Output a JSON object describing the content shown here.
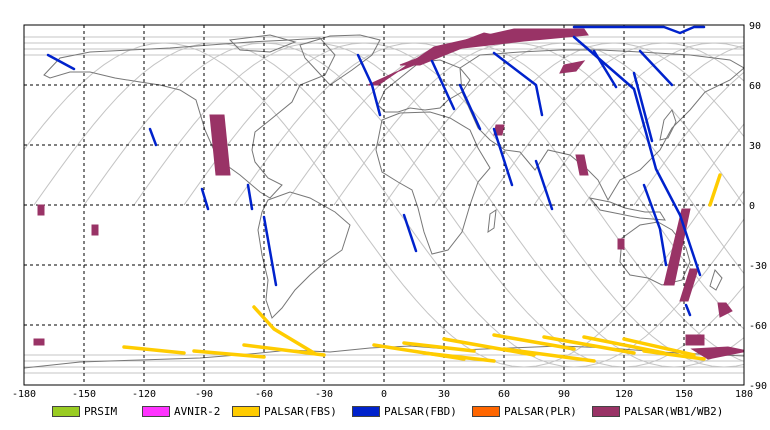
{
  "map": {
    "projection": "equirectangular",
    "lon_range": [
      -180,
      180
    ],
    "lat_range": [
      -90,
      90
    ],
    "x_ticks": [
      "-180",
      "-150",
      "-120",
      "-90",
      "-60",
      "-30",
      "0",
      "30",
      "60",
      "90",
      "120",
      "150",
      "180"
    ],
    "y_ticks": [
      "90",
      "60",
      "30",
      "0",
      "-30",
      "-60",
      "-90"
    ],
    "grid": true,
    "gridline_style": "dashed",
    "coastline_color": "#777777",
    "orbit_track_color": "#c4c4c4"
  },
  "legend": {
    "items": [
      {
        "label": "PRSIM",
        "color": "#99cc22"
      },
      {
        "label": "AVNIR-2",
        "color": "#ff33ff"
      },
      {
        "label": "PALSAR(FBS)",
        "color": "#ffcc00"
      },
      {
        "label": "PALSAR(FBD)",
        "color": "#0022cc"
      },
      {
        "label": "PALSAR(PLR)",
        "color": "#ff6600"
      },
      {
        "label": "PALSAR(WB1/WB2)",
        "color": "#993366"
      }
    ]
  },
  "swaths": {
    "wb": [
      {
        "points": [
          [
            -87,
            45
          ],
          [
            -80,
            45
          ],
          [
            -77,
            15
          ],
          [
            -84,
            15
          ]
        ]
      },
      {
        "points": [
          [
            -173,
            0
          ],
          [
            -170,
            0
          ],
          [
            -170,
            -5
          ],
          [
            -173,
            -5
          ]
        ]
      },
      {
        "points": [
          [
            -146,
            -10
          ],
          [
            -143,
            -10
          ],
          [
            -143,
            -15
          ],
          [
            -146,
            -15
          ]
        ]
      },
      {
        "points": [
          [
            -175,
            -67
          ],
          [
            -170,
            -67
          ],
          [
            -170,
            -70
          ],
          [
            -175,
            -70
          ]
        ]
      },
      {
        "points": [
          [
            -8,
            60
          ],
          [
            -3,
            60
          ],
          [
            25,
            79
          ],
          [
            65,
            88
          ],
          [
            100,
            88
          ],
          [
            102,
            85
          ],
          [
            70,
            82
          ],
          [
            35,
            78
          ],
          [
            5,
            66
          ]
        ]
      },
      {
        "points": [
          [
            8,
            70
          ],
          [
            18,
            70
          ],
          [
            55,
            85
          ],
          [
            50,
            86
          ]
        ]
      },
      {
        "points": [
          [
            90,
            70
          ],
          [
            100,
            72
          ],
          [
            96,
            67
          ],
          [
            88,
            66
          ]
        ]
      },
      {
        "points": [
          [
            56,
            40
          ],
          [
            60,
            40
          ],
          [
            59,
            35
          ],
          [
            55,
            35
          ]
        ]
      },
      {
        "points": [
          [
            96,
            25
          ],
          [
            100,
            25
          ],
          [
            102,
            15
          ],
          [
            98,
            15
          ]
        ]
      },
      {
        "points": [
          [
            117,
            -17
          ],
          [
            120,
            -17
          ],
          [
            120,
            -22
          ],
          [
            117,
            -22
          ]
        ]
      },
      {
        "points": [
          [
            149,
            -2
          ],
          [
            153,
            -2
          ],
          [
            145,
            -40
          ],
          [
            140,
            -40
          ]
        ]
      },
      {
        "points": [
          [
            153,
            -32
          ],
          [
            157,
            -32
          ],
          [
            152,
            -48
          ],
          [
            148,
            -48
          ]
        ]
      },
      {
        "points": [
          [
            167,
            -49
          ],
          [
            171,
            -49
          ],
          [
            174,
            -53
          ],
          [
            168,
            -56
          ]
        ]
      },
      {
        "points": [
          [
            151,
            -65
          ],
          [
            160,
            -65
          ],
          [
            160,
            -70
          ],
          [
            151,
            -70
          ]
        ]
      },
      {
        "points": [
          [
            154,
            -72
          ],
          [
            172,
            -71
          ],
          [
            182,
            -73
          ],
          [
            162,
            -77
          ]
        ]
      }
    ],
    "fbd": [
      {
        "points": [
          [
            -168,
            75
          ],
          [
            -155,
            68
          ]
        ]
      },
      {
        "points": [
          [
            -117,
            38
          ],
          [
            -114,
            30
          ]
        ]
      },
      {
        "points": [
          [
            -91,
            8
          ],
          [
            -88,
            -2
          ]
        ]
      },
      {
        "points": [
          [
            -68,
            10
          ],
          [
            -66,
            -2
          ]
        ]
      },
      {
        "points": [
          [
            -60,
            -6
          ],
          [
            -54,
            -40
          ]
        ]
      },
      {
        "points": [
          [
            -13,
            75
          ],
          [
            -6,
            60
          ]
        ]
      },
      {
        "points": [
          [
            -6,
            60
          ],
          [
            -2,
            45
          ]
        ]
      },
      {
        "points": [
          [
            10,
            -5
          ],
          [
            16,
            -23
          ]
        ]
      },
      {
        "points": [
          [
            24,
            72
          ],
          [
            35,
            48
          ]
        ]
      },
      {
        "points": [
          [
            38,
            60
          ],
          [
            48,
            38
          ]
        ]
      },
      {
        "points": [
          [
            55,
            38
          ],
          [
            64,
            10
          ]
        ]
      },
      {
        "points": [
          [
            76,
            22
          ],
          [
            84,
            -2
          ]
        ]
      },
      {
        "points": [
          [
            95,
            84
          ],
          [
            125,
            58
          ],
          [
            136,
            18
          ],
          [
            148,
            -5
          ],
          [
            158,
            -35
          ]
        ]
      },
      {
        "points": [
          [
            105,
            77
          ],
          [
            116,
            59
          ]
        ]
      },
      {
        "points": [
          [
            55,
            76
          ],
          [
            76,
            60
          ],
          [
            79,
            45
          ]
        ]
      },
      {
        "points": [
          [
            128,
            77
          ],
          [
            144,
            60
          ]
        ]
      },
      {
        "points": [
          [
            125,
            66
          ],
          [
            134,
            32
          ]
        ]
      },
      {
        "points": [
          [
            130,
            10
          ],
          [
            138,
            -12
          ],
          [
            141,
            -30
          ]
        ]
      },
      {
        "points": [
          [
            151,
            -50
          ],
          [
            153,
            -55
          ]
        ]
      },
      {
        "points": [
          [
            95,
            89
          ],
          [
            140,
            89
          ],
          [
            148,
            86
          ],
          [
            155,
            89
          ],
          [
            160,
            89
          ]
        ]
      }
    ],
    "fbs": [
      {
        "points": [
          [
            -65,
            -51
          ],
          [
            -55,
            -62
          ],
          [
            -35,
            -74
          ]
        ]
      },
      {
        "points": [
          [
            -130,
            -71
          ],
          [
            -100,
            -74
          ]
        ]
      },
      {
        "points": [
          [
            -95,
            -73
          ],
          [
            -60,
            -76
          ]
        ]
      },
      {
        "points": [
          [
            -70,
            -70
          ],
          [
            -30,
            -75
          ]
        ]
      },
      {
        "points": [
          [
            -5,
            -70
          ],
          [
            40,
            -77
          ]
        ]
      },
      {
        "points": [
          [
            10,
            -69
          ],
          [
            45,
            -73
          ]
        ]
      },
      {
        "points": [
          [
            20,
            -74
          ],
          [
            55,
            -78
          ]
        ]
      },
      {
        "points": [
          [
            30,
            -67
          ],
          [
            75,
            -75
          ]
        ]
      },
      {
        "points": [
          [
            55,
            -65
          ],
          [
            95,
            -72
          ]
        ]
      },
      {
        "points": [
          [
            60,
            -72
          ],
          [
            105,
            -78
          ]
        ]
      },
      {
        "points": [
          [
            80,
            -66
          ],
          [
            125,
            -74
          ]
        ]
      },
      {
        "points": [
          [
            100,
            -66
          ],
          [
            140,
            -74
          ]
        ]
      },
      {
        "points": [
          [
            120,
            -67
          ],
          [
            155,
            -75
          ]
        ]
      },
      {
        "points": [
          [
            130,
            -73
          ],
          [
            160,
            -77
          ]
        ]
      },
      {
        "points": [
          [
            163,
            0
          ],
          [
            168,
            15
          ]
        ]
      }
    ]
  }
}
